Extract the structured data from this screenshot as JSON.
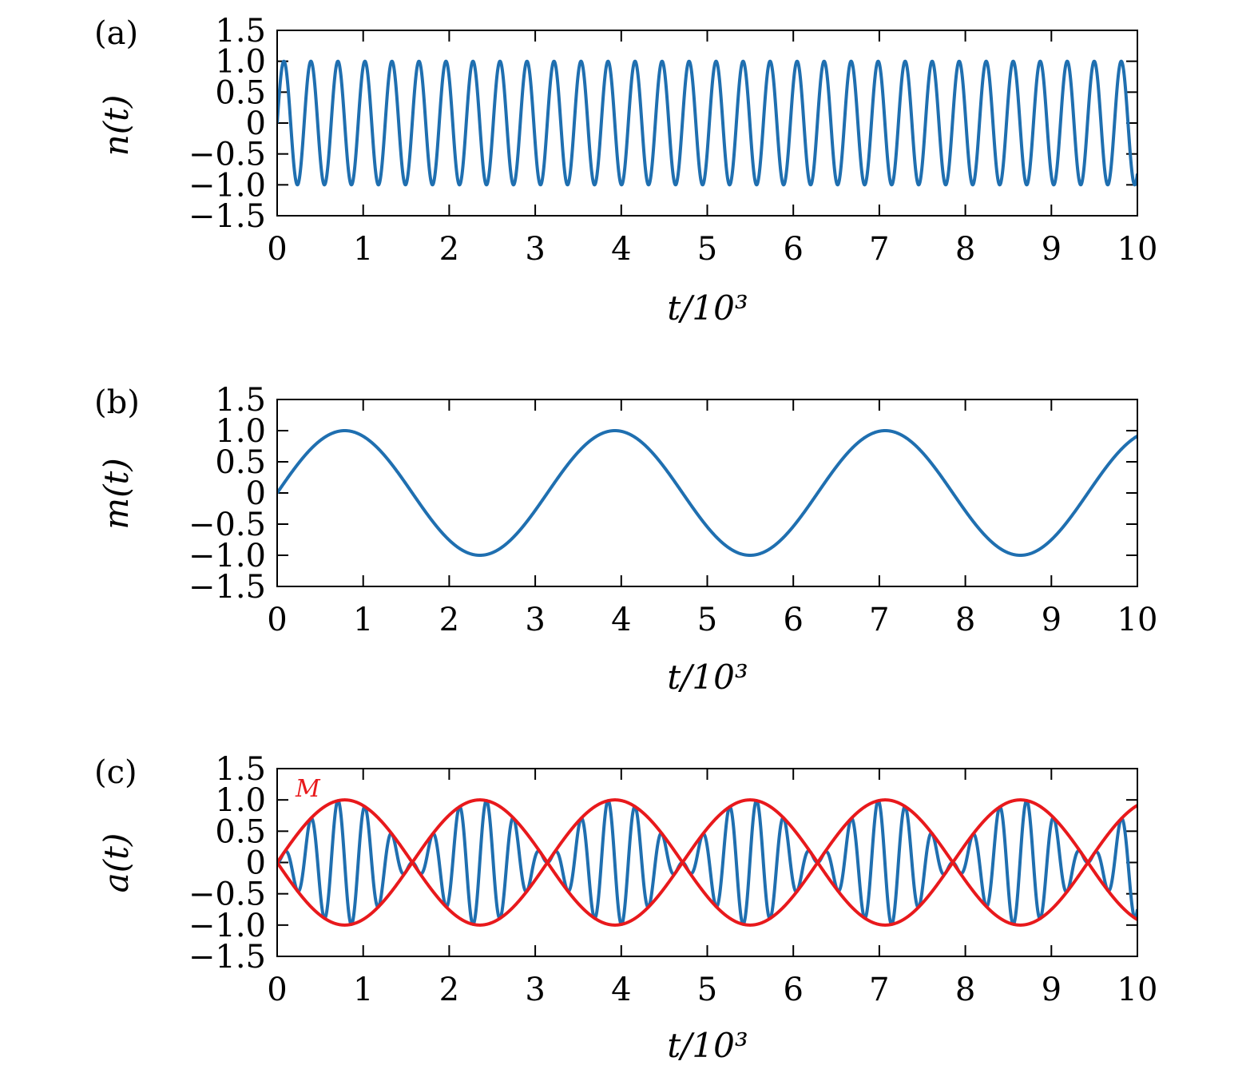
{
  "chart_data": [
    {
      "type": "line",
      "panel_label": "(a)",
      "ylabel": "n(t)",
      "xlabel": "t/10³",
      "xlim": [
        0,
        10
      ],
      "ylim": [
        -1.5,
        1.5
      ],
      "xticks": [
        0,
        1,
        2,
        3,
        4,
        5,
        6,
        7,
        8,
        9,
        10
      ],
      "xtick_labels": [
        "0",
        "1",
        "2",
        "3",
        "4",
        "5",
        "6",
        "7",
        "8",
        "9",
        "10"
      ],
      "yticks": [
        1.5,
        1.0,
        0.5,
        0,
        -0.5,
        -1.0,
        -1.5
      ],
      "ytick_labels": [
        "1.5",
        "1.0",
        "0.5",
        "0",
        "−0.5",
        "−1.0",
        "−1.5"
      ],
      "series": [
        {
          "color": "#1f6fb0",
          "function": "sin",
          "amplitude": 1.0,
          "period": 0.314,
          "phase": 0
        }
      ]
    },
    {
      "type": "line",
      "panel_label": "(b)",
      "ylabel": "m(t)",
      "xlabel": "t/10³",
      "xlim": [
        0,
        10
      ],
      "ylim": [
        -1.5,
        1.5
      ],
      "xticks": [
        0,
        1,
        2,
        3,
        4,
        5,
        6,
        7,
        8,
        9,
        10
      ],
      "xtick_labels": [
        "0",
        "1",
        "2",
        "3",
        "4",
        "5",
        "6",
        "7",
        "8",
        "9",
        "10"
      ],
      "yticks": [
        1.5,
        1.0,
        0.5,
        0,
        -0.5,
        -1.0,
        -1.5
      ],
      "ytick_labels": [
        "1.5",
        "1.0",
        "0.5",
        "0",
        "−0.5",
        "−1.0",
        "−1.5"
      ],
      "series": [
        {
          "color": "#1f6fb0",
          "function": "sin",
          "amplitude": 1.0,
          "period": 3.1416,
          "phase": 0
        }
      ]
    },
    {
      "type": "line",
      "panel_label": "(c)",
      "ylabel": "a(t)",
      "xlabel": "t/10³",
      "xlim": [
        0,
        10
      ],
      "ylim": [
        -1.5,
        1.5
      ],
      "xticks": [
        0,
        1,
        2,
        3,
        4,
        5,
        6,
        7,
        8,
        9,
        10
      ],
      "xtick_labels": [
        "0",
        "1",
        "2",
        "3",
        "4",
        "5",
        "6",
        "7",
        "8",
        "9",
        "10"
      ],
      "yticks": [
        1.5,
        1.0,
        0.5,
        0,
        -0.5,
        -1.0,
        -1.5
      ],
      "ytick_labels": [
        "1.5",
        "1.0",
        "0.5",
        "0",
        "−0.5",
        "−1.0",
        "−1.5"
      ],
      "annotation": {
        "text": "M",
        "color": "#e8191c"
      },
      "series": [
        {
          "color": "#1f6fb0",
          "function": "product",
          "amplitude": 1.0,
          "carrier_period": 0.314,
          "envelope_period": 3.1416
        },
        {
          "color": "#e8191c",
          "function": "sin",
          "amplitude": 1.0,
          "period": 3.1416,
          "phase": 0
        },
        {
          "color": "#e8191c",
          "function": "sin",
          "amplitude": -1.0,
          "period": 3.1416,
          "phase": 0
        }
      ]
    }
  ]
}
